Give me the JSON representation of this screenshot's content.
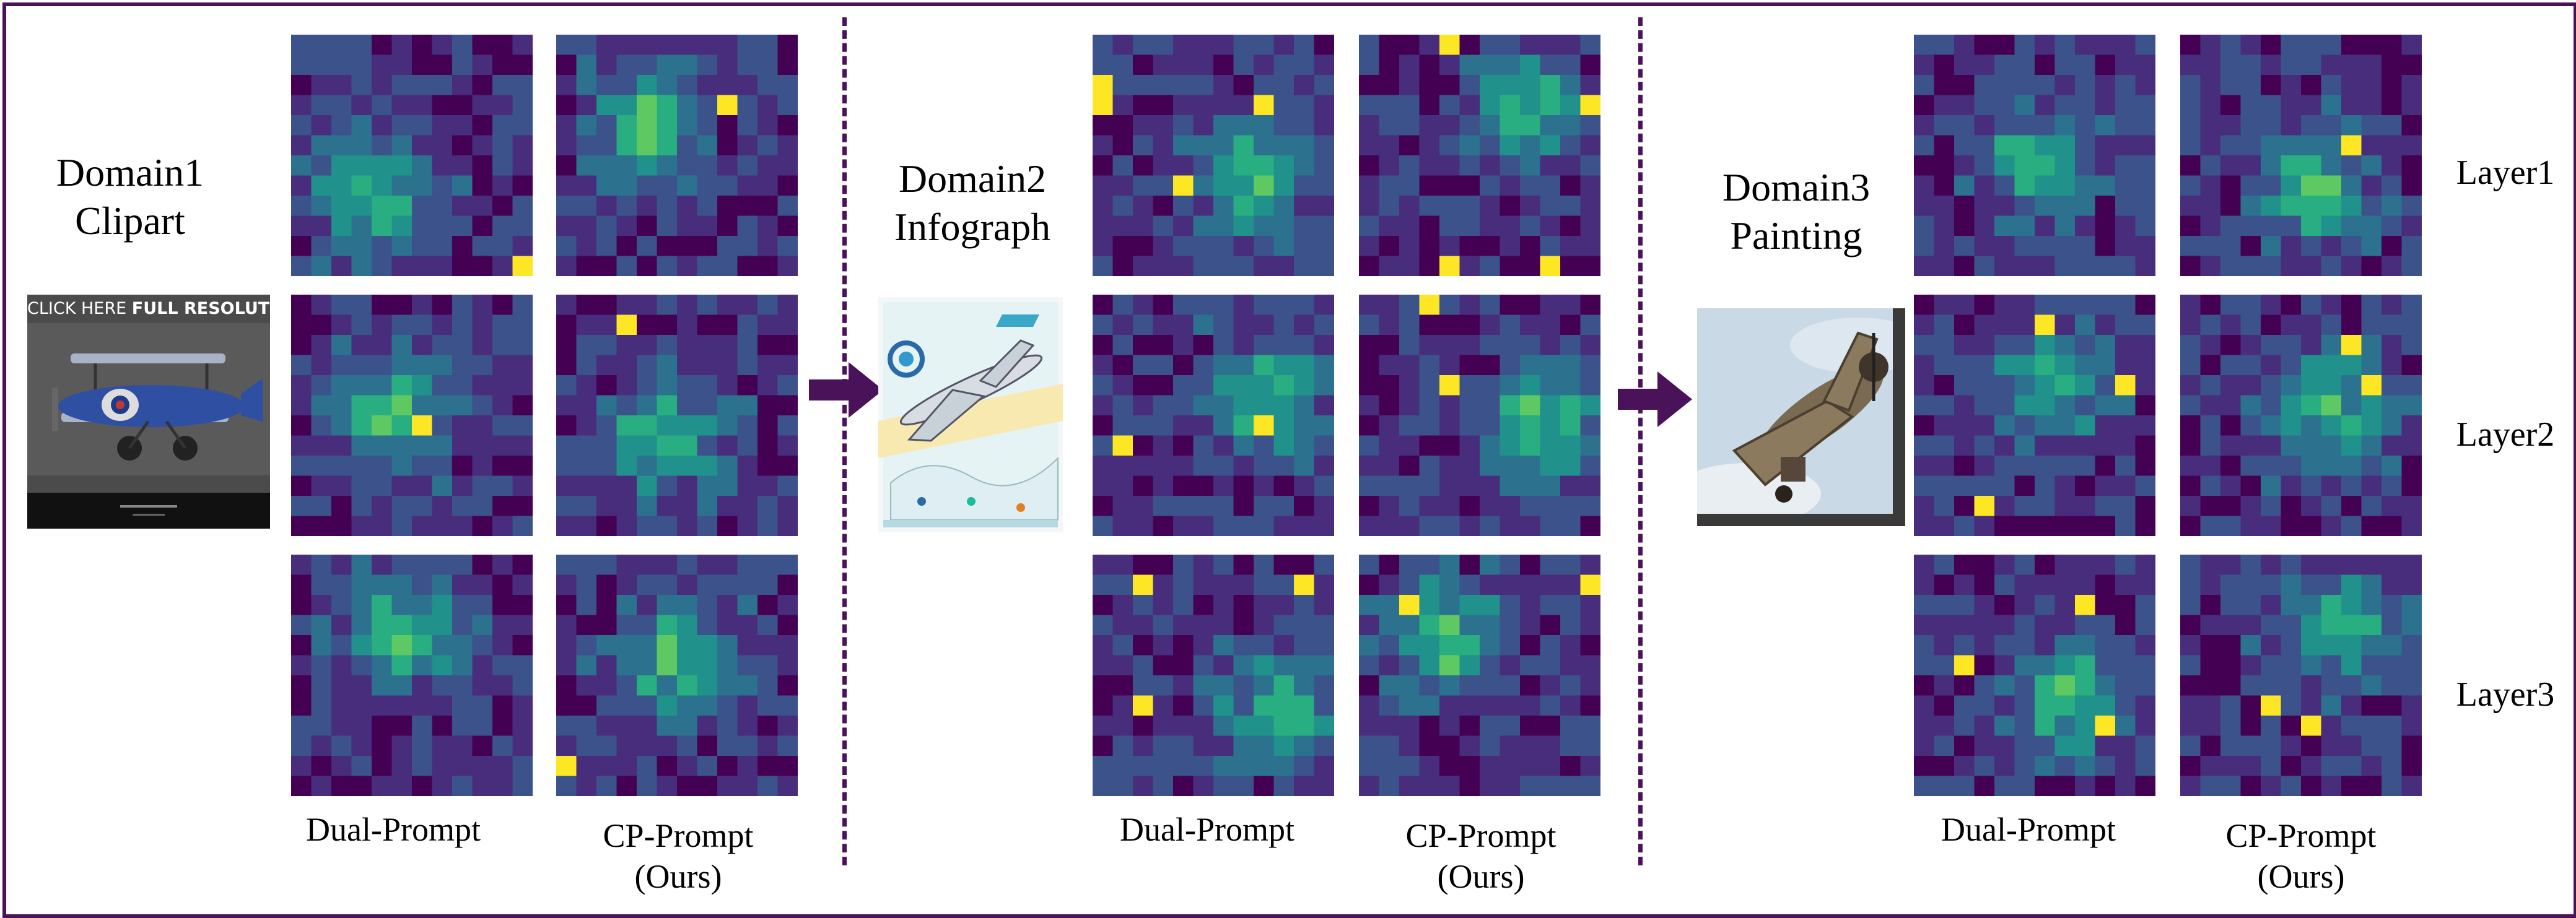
{
  "domains": [
    {
      "title_line1": "Domain1",
      "title_line2": "Clipart",
      "image_icon": "biplane-clipart-image",
      "banner_prefix": "CLICK HERE",
      "banner_bold": "FULL RESOLUTION"
    },
    {
      "title_line1": "Domain2",
      "title_line2": "Infograph",
      "image_icon": "airliner-infograph-image"
    },
    {
      "title_line1": "Domain3",
      "title_line2": "Painting",
      "image_icon": "warplane-painting-image"
    }
  ],
  "columns": {
    "dual": "Dual-Prompt",
    "cp_line1": "CP-Prompt",
    "cp_line2": "(Ours)"
  },
  "layers": [
    "Layer1",
    "Layer2",
    "Layer3"
  ],
  "colors": {
    "frame": "#4a1259",
    "arrow": "#4a1259",
    "viridis": [
      "#440154",
      "#472d7b",
      "#3b528b",
      "#2c728e",
      "#21918c",
      "#28ae80",
      "#5ec962",
      "#addc30",
      "#fde725"
    ]
  },
  "heatmaps": {
    "grid": 12,
    "seeds": [
      [
        11,
        12
      ],
      [
        13,
        14
      ],
      [
        15,
        16
      ],
      [
        21,
        22
      ],
      [
        23,
        24
      ],
      [
        25,
        26
      ],
      [
        31,
        32
      ],
      [
        33,
        34
      ],
      [
        35,
        36
      ]
    ]
  }
}
